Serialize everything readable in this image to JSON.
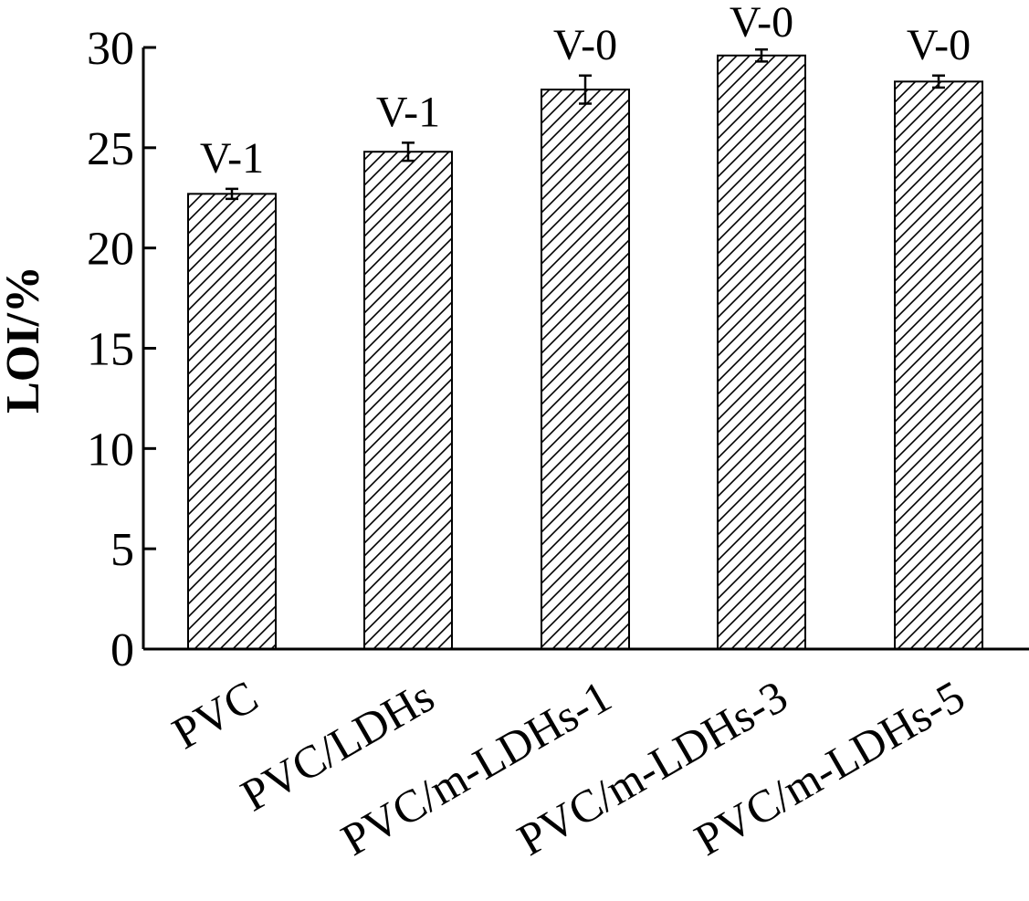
{
  "chart_data": {
    "type": "bar",
    "title": "",
    "xlabel": "",
    "ylabel": "LOI/%",
    "ylim": [
      0,
      30
    ],
    "yticks": [
      "0",
      "5",
      "10",
      "15",
      "20",
      "25",
      "30"
    ],
    "categories": [
      "PVC",
      "PVC/LDHs",
      "PVC/m-LDHs-1",
      "PVC/m-LDHs-3",
      "PVC/m-LDHs-5"
    ],
    "values": [
      22.7,
      24.8,
      27.9,
      29.6,
      28.3
    ],
    "errors": [
      0.25,
      0.45,
      0.7,
      0.3,
      0.3
    ],
    "annotations": [
      "V-1",
      "V-1",
      "V-0",
      "V-0",
      "V-0"
    ],
    "bar_fill": "hatched",
    "colors": {
      "bar_edge": "#000000",
      "hatch": "#000000",
      "axis": "#000000",
      "background": "#ffffff"
    },
    "grid": false,
    "legend": "none"
  }
}
